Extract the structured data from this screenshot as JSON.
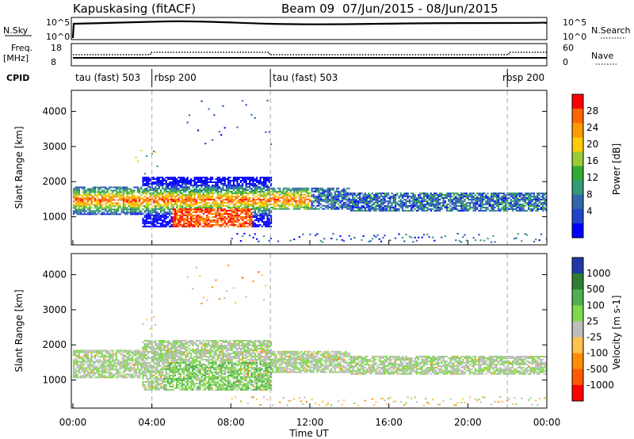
{
  "header": {
    "station": "Kapuskasing (fitACF)",
    "beam": "Beam 09",
    "date_range": "07/Jun/2015 - 08/Jun/2015"
  },
  "strip_panels": {
    "nsky_label": "N.Sky",
    "nsky_ticks": [
      "10^5",
      "10^0"
    ],
    "nsearch_label": "N.Search",
    "nsearch_ticks": [
      "10^5",
      "10^0"
    ],
    "freq_label": "Freq.",
    "freq_unit": "[MHz]",
    "freq_ticks": [
      "18",
      "8"
    ],
    "nave_label": "Nave",
    "nave_ticks": [
      "60",
      "0"
    ],
    "cpid_label": "CPID"
  },
  "cpid_segments": [
    {
      "label": "tau (fast) 503",
      "start_hour": 0,
      "end_hour": 4
    },
    {
      "label": "rbsp 200",
      "start_hour": 4,
      "end_hour": 10
    },
    {
      "label": "tau (fast) 503",
      "start_hour": 10,
      "end_hour": 22
    },
    {
      "label": "rbsp 200",
      "start_hour": 22,
      "end_hour": 24
    }
  ],
  "chart_data": [
    {
      "type": "heatmap",
      "name": "power",
      "ylabel": "Slant Range [km]",
      "yticks": [
        "4000",
        "3000",
        "2000",
        "1000"
      ],
      "ylim": [
        200,
        4600
      ],
      "xlim": [
        0,
        24
      ],
      "colorbar": {
        "label": "Power [dB]",
        "ticks": [
          "28",
          "24",
          "20",
          "16",
          "12",
          "8",
          "4"
        ],
        "colors": [
          "#ff0000",
          "#ff6600",
          "#ff9900",
          "#ffcc00",
          "#99cc33",
          "#33aa33",
          "#339977",
          "#3366aa",
          "#2244cc",
          "#0000ff"
        ]
      }
    },
    {
      "type": "heatmap",
      "name": "velocity",
      "ylabel": "Slant Range [km]",
      "yticks": [
        "4000",
        "3000",
        "2000",
        "1000"
      ],
      "ylim": [
        200,
        4600
      ],
      "xlim": [
        0,
        24
      ],
      "xlabel": "Time UT",
      "xticks": [
        "00:00",
        "04:00",
        "08:00",
        "12:00",
        "16:00",
        "20:00",
        "00:00"
      ],
      "colorbar": {
        "label": "Velocity [m s-1]",
        "ticks": [
          "1000",
          "500",
          "100",
          "25",
          "-25",
          "-100",
          "-500",
          "-1000"
        ],
        "colors": [
          "#1f3aa8",
          "#2e7d32",
          "#4caf50",
          "#7fd94c",
          "#bdbdbd",
          "#ffc24d",
          "#ff8c00",
          "#ff5a00",
          "#ff0000"
        ]
      }
    }
  ],
  "colors": {
    "ground_scatter": "#bdbdbd",
    "dashed_lines": "#aaaaaa"
  }
}
